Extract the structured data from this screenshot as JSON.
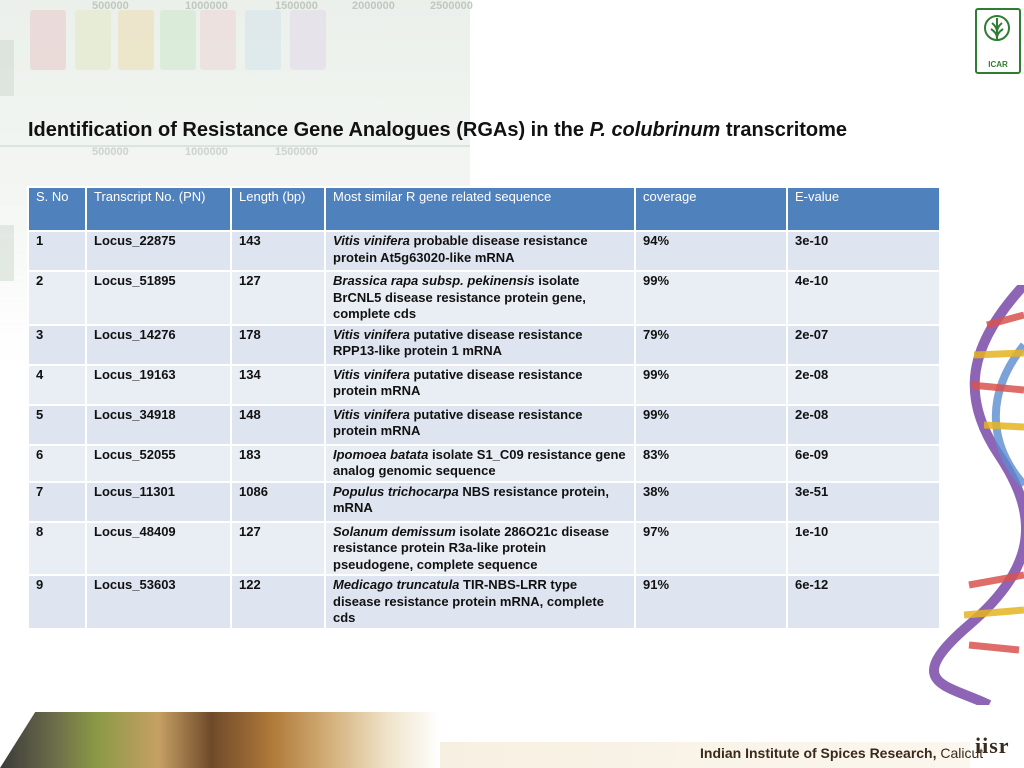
{
  "title": {
    "prefix": "Identification of Resistance Gene Analogues (RGAs) in the ",
    "species": "P. colubrinum",
    "suffix": " transcritome"
  },
  "decor": {
    "gel_labels_top": [
      "500000",
      "1000000",
      "1500000",
      "2000000",
      "2500000"
    ],
    "gel_labels_mid": [
      "500000",
      "1000000",
      "1500000"
    ],
    "icar_text": "ICAR",
    "iisr_text": "iisr"
  },
  "table": {
    "headers": {
      "sno": "S. No",
      "transcript": "Transcript No. (PN)",
      "length": "Length (bp)",
      "similar": "Most similar R gene related sequence",
      "coverage": "coverage",
      "evalue": "E-value"
    },
    "rows": [
      {
        "sno": "1",
        "locus": "Locus_22875",
        "length": "143",
        "species": "Vitis vinifera",
        "desc": " probable disease resistance protein At5g63020-like mRNA",
        "coverage": "94%",
        "evalue": "3e-10"
      },
      {
        "sno": "2",
        "locus": "Locus_51895",
        "length": "127",
        "species": "Brassica rapa subsp. pekinensis",
        "desc": " isolate BrCNL5 disease resistance protein gene, complete cds",
        "coverage": "99%",
        "evalue": "4e-10"
      },
      {
        "sno": "3",
        "locus": "Locus_14276",
        "length": "178",
        "species": "Vitis vinifera",
        "desc": " putative disease resistance RPP13-like protein 1 mRNA",
        "coverage": "79%",
        "evalue": "2e-07"
      },
      {
        "sno": "4",
        "locus": "Locus_19163",
        "length": "134",
        "species": "Vitis vinifera",
        "desc": " putative disease resistance protein mRNA",
        "coverage": "99%",
        "evalue": "2e-08"
      },
      {
        "sno": "5",
        "locus": "Locus_34918",
        "length": "148",
        "species": "Vitis vinifera",
        "desc": " putative disease resistance protein mRNA",
        "coverage": "99%",
        "evalue": "2e-08"
      },
      {
        "sno": "6",
        "locus": "Locus_52055",
        "length": "183",
        "species": "Ipomoea batata",
        "desc": " isolate S1_C09 resistance gene analog genomic sequence",
        "coverage": "83%",
        "evalue": "6e-09"
      },
      {
        "sno": "7",
        "locus": "Locus_11301",
        "length": "1086",
        "species": "Populus trichocarpa",
        "desc": " NBS resistance protein, mRNA",
        "coverage": "38%",
        "evalue": "3e-51"
      },
      {
        "sno": "8",
        "locus": "Locus_48409",
        "length": "127",
        "species": "Solanum demissum",
        "desc": " isolate 286O21c disease resistance protein R3a-like protein pseudogene, complete sequence",
        "coverage": "97%",
        "evalue": "1e-10"
      },
      {
        "sno": "9",
        "locus": "Locus_53603",
        "length": "122",
        "species": "Medicago truncatula",
        "desc": " TIR-NBS-LRR type disease resistance protein mRNA, complete cds",
        "coverage": "91%",
        "evalue": "6e-12"
      }
    ]
  },
  "footer": {
    "institute": "Indian Institute of Spices Research, ",
    "location": "Calicut"
  },
  "colors": {
    "header_bg": "#4f81bd",
    "row_bg": "#e9edf4",
    "row_alt_bg": "#dfe5f0"
  }
}
